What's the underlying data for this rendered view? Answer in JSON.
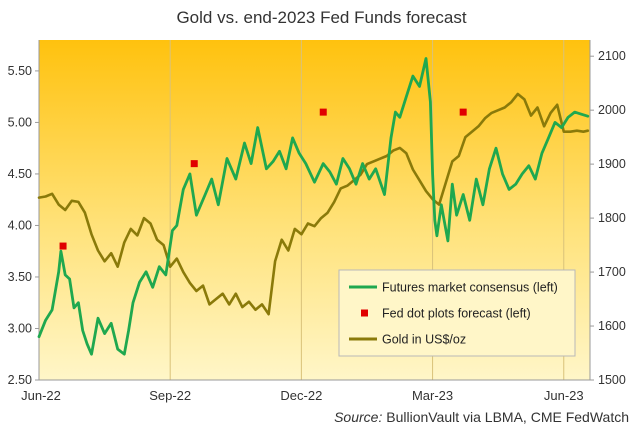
{
  "chart_data": {
    "type": "line",
    "title": "Gold vs. end-2023 Fed Funds forecast",
    "source_label": "Source:",
    "source_text": "BullionVault via LBMA, CME FedWatch",
    "x_ticks": [
      "Jun-22",
      "Sep-22",
      "Dec-22",
      "Mar-23",
      "Jun-23"
    ],
    "x_tick_positions": [
      0,
      3,
      6,
      9,
      12
    ],
    "x_range": [
      0,
      12.6
    ],
    "y_left": {
      "ticks": [
        "2.50",
        "3.00",
        "3.50",
        "4.00",
        "4.50",
        "5.00",
        "5.50"
      ],
      "range": [
        2.5,
        5.8
      ]
    },
    "y_right": {
      "ticks": [
        "1500",
        "1600",
        "1700",
        "1800",
        "1900",
        "2000",
        "2100"
      ],
      "range": [
        1500,
        2130
      ]
    },
    "grid": "vertical",
    "legend_position": "bottom-right",
    "series": [
      {
        "name": "Futures market consensus (left)",
        "axis": "left",
        "color": "#1fa84f",
        "style": "line",
        "x": [
          0.0,
          0.15,
          0.3,
          0.45,
          0.5,
          0.6,
          0.7,
          0.8,
          0.9,
          1.0,
          1.1,
          1.2,
          1.35,
          1.5,
          1.65,
          1.8,
          1.95,
          2.05,
          2.15,
          2.3,
          2.45,
          2.6,
          2.75,
          2.9,
          3.05,
          3.15,
          3.3,
          3.45,
          3.6,
          3.7,
          3.8,
          3.95,
          4.1,
          4.3,
          4.5,
          4.7,
          4.85,
          5.0,
          5.2,
          5.35,
          5.5,
          5.65,
          5.8,
          5.95,
          6.1,
          6.3,
          6.5,
          6.65,
          6.8,
          6.95,
          7.1,
          7.25,
          7.4,
          7.55,
          7.7,
          7.9,
          8.05,
          8.15,
          8.25,
          8.4,
          8.55,
          8.7,
          8.85,
          8.95,
          9.0,
          9.05,
          9.1,
          9.2,
          9.35,
          9.45,
          9.55,
          9.7,
          9.85,
          10.0,
          10.15,
          10.3,
          10.45,
          10.6,
          10.75,
          10.9,
          11.05,
          11.2,
          11.35,
          11.5,
          11.65,
          11.8,
          11.95,
          12.1,
          12.25,
          12.4,
          12.55
        ],
        "values": [
          2.92,
          3.08,
          3.18,
          3.55,
          3.75,
          3.52,
          3.48,
          3.2,
          3.25,
          2.98,
          2.85,
          2.75,
          3.1,
          2.95,
          3.05,
          2.8,
          2.75,
          2.98,
          3.25,
          3.45,
          3.55,
          3.4,
          3.6,
          3.52,
          3.95,
          4.0,
          4.35,
          4.5,
          4.1,
          4.2,
          4.3,
          4.45,
          4.2,
          4.65,
          4.45,
          4.8,
          4.6,
          4.95,
          4.55,
          4.62,
          4.72,
          4.55,
          4.85,
          4.7,
          4.6,
          4.42,
          4.6,
          4.52,
          4.4,
          4.65,
          4.55,
          4.4,
          4.6,
          4.45,
          4.55,
          4.3,
          4.85,
          5.1,
          5.05,
          5.25,
          5.45,
          5.35,
          5.62,
          5.2,
          4.5,
          4.05,
          3.9,
          4.2,
          3.85,
          4.4,
          4.1,
          4.3,
          4.05,
          4.45,
          4.2,
          4.55,
          4.75,
          4.5,
          4.35,
          4.4,
          4.5,
          4.58,
          4.45,
          4.7,
          4.85,
          5.0,
          4.95,
          5.05,
          5.1,
          5.08,
          5.06
        ]
      },
      {
        "name": "Fed dot plots forecast (left)",
        "axis": "left",
        "color": "#e00000",
        "style": "points",
        "x": [
          0.55,
          3.55,
          6.5,
          9.7
        ],
        "values": [
          3.8,
          4.6,
          5.1,
          5.1
        ]
      },
      {
        "name": "Gold in US$/oz",
        "axis": "right",
        "color": "#8a7a0a",
        "style": "line",
        "x": [
          0.0,
          0.15,
          0.3,
          0.45,
          0.6,
          0.75,
          0.9,
          1.05,
          1.2,
          1.35,
          1.5,
          1.65,
          1.8,
          1.95,
          2.1,
          2.25,
          2.4,
          2.55,
          2.7,
          2.85,
          3.0,
          3.15,
          3.3,
          3.45,
          3.6,
          3.75,
          3.9,
          4.05,
          4.2,
          4.35,
          4.5,
          4.65,
          4.8,
          4.95,
          5.1,
          5.25,
          5.4,
          5.55,
          5.7,
          5.85,
          6.0,
          6.15,
          6.3,
          6.45,
          6.6,
          6.75,
          6.9,
          7.05,
          7.2,
          7.35,
          7.5,
          7.65,
          7.8,
          7.95,
          8.1,
          8.25,
          8.4,
          8.55,
          8.7,
          8.85,
          9.0,
          9.15,
          9.3,
          9.45,
          9.6,
          9.75,
          9.9,
          10.05,
          10.2,
          10.35,
          10.5,
          10.65,
          10.8,
          10.95,
          11.1,
          11.25,
          11.4,
          11.55,
          11.7,
          11.85,
          12.0,
          12.15,
          12.3,
          12.45,
          12.55
        ],
        "values": [
          1838,
          1840,
          1845,
          1825,
          1815,
          1832,
          1830,
          1810,
          1770,
          1740,
          1720,
          1735,
          1710,
          1755,
          1780,
          1768,
          1800,
          1790,
          1760,
          1750,
          1710,
          1725,
          1700,
          1680,
          1665,
          1675,
          1640,
          1650,
          1660,
          1640,
          1660,
          1635,
          1645,
          1630,
          1640,
          1622,
          1720,
          1760,
          1740,
          1780,
          1770,
          1790,
          1785,
          1800,
          1810,
          1830,
          1855,
          1860,
          1870,
          1880,
          1900,
          1905,
          1910,
          1915,
          1925,
          1930,
          1920,
          1890,
          1870,
          1850,
          1835,
          1825,
          1865,
          1905,
          1915,
          1950,
          1960,
          1970,
          1985,
          1995,
          2000,
          2005,
          2015,
          2030,
          2020,
          1990,
          2005,
          1970,
          1995,
          2010,
          1960,
          1960,
          1962,
          1960,
          1962
        ]
      }
    ]
  }
}
